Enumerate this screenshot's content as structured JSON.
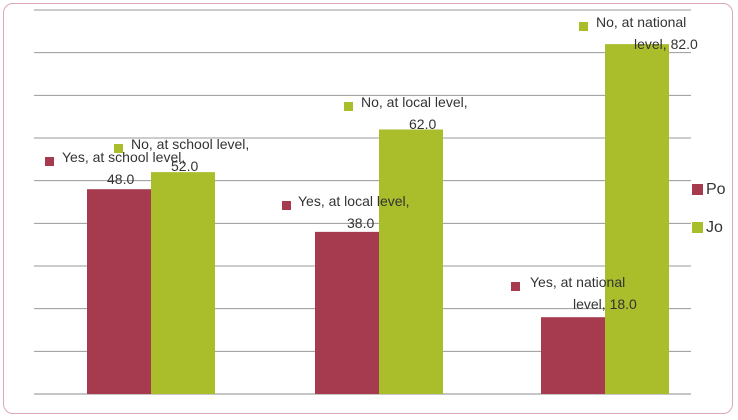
{
  "chart_data": {
    "type": "bar",
    "categories": [
      "school level",
      "local level",
      "national level"
    ],
    "series": [
      {
        "name": "Po",
        "color": "#a63a4e",
        "values": [
          48.0,
          38.0,
          18.0
        ],
        "labels": [
          [
            "Yes, at school level,",
            "48.0"
          ],
          [
            "Yes, at local level,",
            "38.0"
          ],
          [
            "Yes, at national",
            "level, 18.0"
          ]
        ]
      },
      {
        "name": "Jo",
        "color": "#a9be2a",
        "values": [
          52.0,
          62.0,
          82.0
        ],
        "labels": [
          [
            "No, at school level,",
            "52.0"
          ],
          [
            "No, at local level,",
            "62.0"
          ],
          [
            "No, at national",
            "level, 82.0"
          ]
        ]
      }
    ],
    "ylim": [
      0,
      90
    ],
    "grid": true,
    "legend": "right",
    "title": "",
    "xlabel": "",
    "ylabel": ""
  }
}
